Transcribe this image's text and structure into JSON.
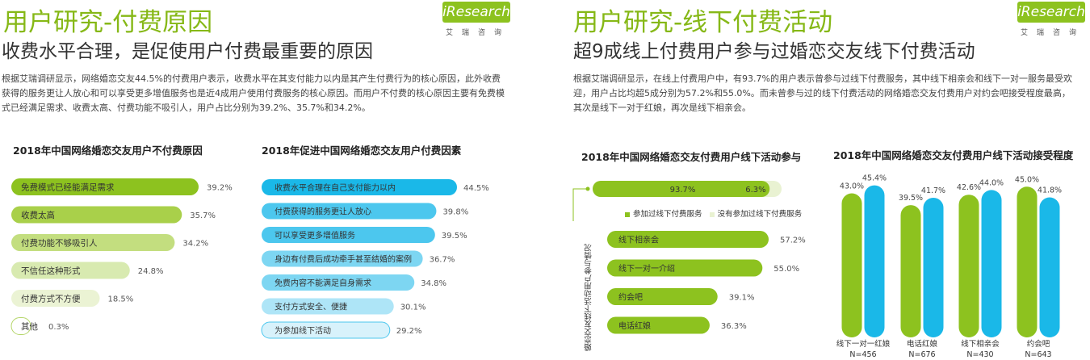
{
  "left": {
    "title": "用户研究-付费原因",
    "subtitle": "收费水平合理，是促使用户付费最重要的原因",
    "body": "根据艾瑞调研显示，网络婚恋交友44.5%的付费用户表示，收费水平在其支付能力以内是其产生付费行为的核心原因，此外收费获得的服务更让人放心和可以享受更多增值服务也是近4成用户使用付费服务的核心原因。而用户不付费的核心原因主要有免费模式已经满足需求、收费太高、付费功能不吸引人，用户占比分别为39.2%、35.7%和34.2%。",
    "logo_text": "iResearch",
    "logo_cn": "艾瑞咨询"
  },
  "right": {
    "title": "用户研究-线下付费活动",
    "subtitle": "超9成线上付费用户参与过婚恋交友线下付费活动",
    "body": "根据艾瑞调研显示，在线上付费用户中，有93.7%的用户表示曾参与过线下付费服务，其中线下相亲会和线下一对一服务最受欢迎，用户占比均超5成分别为57.2%和55.0%。而未曾参与过的线下付费活动的网络婚恋交友付费用户对约会吧接受程度最高，其次是线下一对于红娘，再次是线下相亲会。",
    "logo_text": "iResearch",
    "logo_cn": "艾瑞咨询"
  },
  "colors": {
    "title_green": "#86b817",
    "bar_green_1": "#8dc21f",
    "bar_green_2": "#a9d04a",
    "bar_green_3": "#c3de7f",
    "bar_green_4": "#d8eab0",
    "bar_green_5": "#ebf3d4",
    "bar_blue_1": "#1ab8e8",
    "bar_blue_2": "#4cc7ee",
    "bar_blue_3": "#7dd6f2",
    "bar_blue_4": "#aee5f7",
    "bar_blue_5": "#d8f2fb"
  },
  "chart_data": [
    {
      "type": "bar",
      "orientation": "horizontal",
      "title": "2018年中国网络婚恋交友用户不付费原因",
      "categories": [
        "免费模式已经能满足需求",
        "收费太高",
        "付费功能不够吸引人",
        "不信任这种形式",
        "付费方式不方便",
        "其他"
      ],
      "values": [
        39.2,
        35.7,
        34.2,
        24.8,
        18.5,
        0.3
      ],
      "value_labels": [
        "39.2%",
        "35.7%",
        "34.2%",
        "24.8%",
        "18.5%",
        "0.3%"
      ]
    },
    {
      "type": "bar",
      "orientation": "horizontal",
      "title": "2018年促进中国网络婚恋交友用户付费因素",
      "categories": [
        "收费水平合理在自己支付能力以内",
        "付费获得的服务更让人放心",
        "可以享受更多增值服务",
        "身边有付费后成功牵手甚至结婚的案例",
        "免费内容不能满足自身需求",
        "支付方式安全、便捷",
        "为参加线下活动"
      ],
      "values": [
        44.5,
        39.8,
        39.5,
        36.7,
        34.8,
        30.1,
        29.2
      ],
      "value_labels": [
        "44.5%",
        "39.8%",
        "39.5%",
        "36.7%",
        "34.8%",
        "30.1%",
        "29.2%"
      ]
    },
    {
      "type": "bar",
      "orientation": "horizontal",
      "title": "2018年中国网络婚恋交友付费用户线下活动参与",
      "stacked": {
        "series": [
          {
            "name": "参加过线下付费服务",
            "value": 93.7,
            "label": "93.7%"
          },
          {
            "name": "没有参加过线下付费服务",
            "value": 6.3,
            "label": "6.3%"
          }
        ]
      },
      "axis_label": "婚恋交友线下活动用户参与情况",
      "categories": [
        "线下相亲会",
        "线下一对一介绍",
        "约会吧",
        "电话红娘"
      ],
      "values": [
        57.2,
        55.0,
        39.1,
        36.3
      ],
      "value_labels": [
        "57.2%",
        "55.0%",
        "39.1%",
        "36.3%"
      ]
    },
    {
      "type": "bar",
      "title": "2018年中国网络婚恋交友付费用户线下活动接受程度",
      "categories": [
        "线下一对一红娘",
        "电话红娘",
        "线下相亲会",
        "约会吧"
      ],
      "sample_sizes": [
        "N=456",
        "N=676",
        "N=430",
        "N=643"
      ],
      "series": [
        {
          "values": [
            43.0,
            39.5,
            42.6,
            45.0
          ],
          "labels": [
            "43.0%",
            "39.5%",
            "42.6%",
            "45.0%"
          ]
        },
        {
          "values": [
            45.4,
            41.7,
            44.0,
            41.8
          ],
          "labels": [
            "45.4%",
            "41.7%",
            "44.0%",
            "41.8%"
          ]
        }
      ]
    }
  ]
}
